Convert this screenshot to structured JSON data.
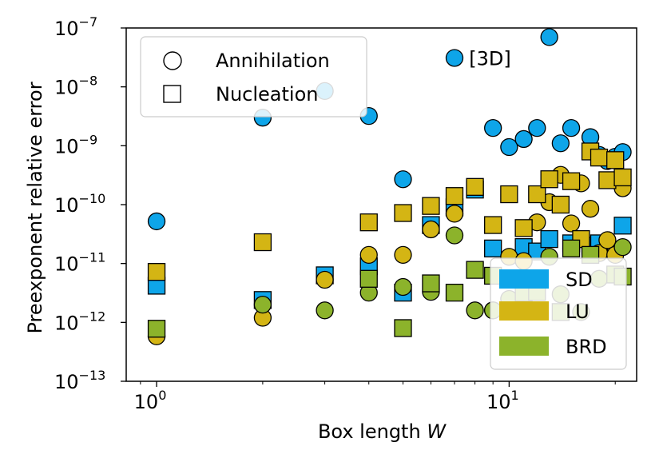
{
  "chart_data": {
    "type": "scatter",
    "title": "",
    "xlabel": "Box length",
    "xlabel_var": "W",
    "ylabel": "Preexponent relative error",
    "xscale": "log",
    "yscale": "log",
    "xlim": [
      0.82,
      23
    ],
    "ylim": [
      1e-13,
      1e-07
    ],
    "x_ticks": [
      {
        "value": 1,
        "base": "10",
        "exp": "0"
      },
      {
        "value": 10,
        "base": "10",
        "exp": "1"
      }
    ],
    "y_ticks": [
      {
        "value": 1e-13,
        "base": "10",
        "exp": "−13"
      },
      {
        "value": 1e-12,
        "base": "10",
        "exp": "−12"
      },
      {
        "value": 1e-11,
        "base": "10",
        "exp": "−11"
      },
      {
        "value": 1e-10,
        "base": "10",
        "exp": "−10"
      },
      {
        "value": 1e-09,
        "base": "10",
        "exp": "−9"
      },
      {
        "value": 1e-08,
        "base": "10",
        "exp": "−8"
      },
      {
        "value": 1e-07,
        "base": "10",
        "exp": "−7"
      }
    ],
    "marker_legend": [
      {
        "marker": "circle",
        "label": "Annihilation"
      },
      {
        "marker": "square",
        "label": "Nucleation"
      }
    ],
    "color_legend": [
      {
        "label": "SD",
        "color": "#0ea5e9"
      },
      {
        "label": "LU",
        "color": "#d4b514"
      },
      {
        "label": "BRD",
        "color": "#8cb32b"
      }
    ],
    "annotation": {
      "text": "[3D]",
      "x": 7.7,
      "y": 3.1e-08
    },
    "series": [
      {
        "name": "SD",
        "kind": "Annihilation",
        "marker": "circle",
        "color": "#0ea5e9",
        "points": [
          [
            1,
            5.2e-11
          ],
          [
            2,
            3e-09
          ],
          [
            3,
            8.5e-09
          ],
          [
            4,
            3.2e-09
          ],
          [
            5,
            2.7e-10
          ],
          [
            7,
            3.1e-08
          ],
          [
            9,
            2e-09
          ],
          [
            10,
            9.5e-10
          ],
          [
            11,
            1.3e-09
          ],
          [
            12,
            2e-09
          ],
          [
            13,
            7e-08
          ],
          [
            14,
            1.1e-09
          ],
          [
            15,
            2e-09
          ],
          [
            17,
            1.4e-09
          ],
          [
            18,
            7e-10
          ],
          [
            19,
            5.5e-10
          ],
          [
            20,
            6.5e-10
          ],
          [
            21,
            7.8e-10
          ]
        ]
      },
      {
        "name": "SD",
        "kind": "Nucleation",
        "marker": "square",
        "color": "#0ea5e9",
        "points": [
          [
            1,
            4.2e-12
          ],
          [
            2,
            2.4e-12
          ],
          [
            3,
            6.3e-12
          ],
          [
            4,
            9e-12
          ],
          [
            5,
            3.2e-12
          ],
          [
            6,
            4.5e-11
          ],
          [
            7,
            9e-11
          ],
          [
            8,
            1.8e-10
          ],
          [
            9,
            1.8e-11
          ],
          [
            11,
            1.9e-11
          ],
          [
            12,
            1.6e-11
          ],
          [
            13,
            2.6e-11
          ],
          [
            15,
            2.2e-11
          ],
          [
            17,
            2e-11
          ],
          [
            18,
            2.2e-11
          ],
          [
            21,
            4.4e-11
          ]
        ]
      },
      {
        "name": "LU",
        "kind": "Annihilation",
        "marker": "circle",
        "color": "#d4b514",
        "points": [
          [
            1,
            5.8e-13
          ],
          [
            2,
            1.2e-12
          ],
          [
            3,
            5.3e-12
          ],
          [
            4,
            1.4e-11
          ],
          [
            5,
            1.4e-11
          ],
          [
            6,
            3.8e-11
          ],
          [
            7,
            7e-11
          ],
          [
            9,
            1.6e-12
          ],
          [
            10,
            1.3e-11
          ],
          [
            11,
            1.1e-11
          ],
          [
            12,
            5e-11
          ],
          [
            13,
            1.1e-10
          ],
          [
            14,
            3.2e-10
          ],
          [
            15,
            4.8e-11
          ],
          [
            16,
            2.3e-10
          ],
          [
            17,
            8.5e-11
          ],
          [
            18,
            1.5e-11
          ],
          [
            19,
            2.5e-11
          ],
          [
            20,
            1.4e-11
          ],
          [
            21,
            1.9e-10
          ]
        ]
      },
      {
        "name": "LU",
        "kind": "Nucleation",
        "marker": "square",
        "color": "#d4b514",
        "points": [
          [
            1,
            7.2e-12
          ],
          [
            2,
            2.3e-11
          ],
          [
            4,
            5e-11
          ],
          [
            5,
            7.2e-11
          ],
          [
            6,
            9.5e-11
          ],
          [
            7,
            1.4e-10
          ],
          [
            8,
            2e-10
          ],
          [
            9,
            4.5e-11
          ],
          [
            10,
            1.5e-10
          ],
          [
            11,
            4e-11
          ],
          [
            12,
            1.5e-10
          ],
          [
            13,
            2.7e-10
          ],
          [
            14,
            1e-10
          ],
          [
            15,
            2.5e-10
          ],
          [
            16,
            2.6e-11
          ],
          [
            17,
            8e-10
          ],
          [
            18,
            6.3e-10
          ],
          [
            19,
            2.6e-10
          ],
          [
            20,
            5.7e-10
          ],
          [
            21,
            2.9e-10
          ]
        ]
      },
      {
        "name": "BRD",
        "kind": "Annihilation",
        "marker": "circle",
        "color": "#8cb32b",
        "points": [
          [
            2,
            2e-12
          ],
          [
            3,
            1.6e-12
          ],
          [
            4,
            3.2e-12
          ],
          [
            5,
            4e-12
          ],
          [
            6,
            3.3e-12
          ],
          [
            7,
            3e-11
          ],
          [
            8,
            1.6e-12
          ],
          [
            9,
            1.6e-12
          ],
          [
            10,
            2.5e-12
          ],
          [
            11,
            3.2e-12
          ],
          [
            13,
            1.3e-11
          ],
          [
            14,
            3e-12
          ],
          [
            15,
            1.8e-11
          ],
          [
            16,
            1.5e-12
          ],
          [
            18,
            5.5e-12
          ],
          [
            21,
            1.9e-11
          ]
        ]
      },
      {
        "name": "BRD",
        "kind": "Nucleation",
        "marker": "square",
        "color": "#8cb32b",
        "points": [
          [
            1,
            7.8e-13
          ],
          [
            4,
            5.5e-12
          ],
          [
            5,
            8e-13
          ],
          [
            6,
            4.6e-12
          ],
          [
            7,
            3.2e-12
          ],
          [
            8,
            7.8e-12
          ],
          [
            9,
            6.2e-12
          ],
          [
            11,
            3.2e-12
          ],
          [
            12,
            3.3e-12
          ],
          [
            14,
            1.5e-12
          ],
          [
            15,
            1.8e-11
          ],
          [
            17,
            1.4e-11
          ],
          [
            20,
            6.5e-12
          ],
          [
            21,
            6e-12
          ]
        ]
      }
    ]
  }
}
